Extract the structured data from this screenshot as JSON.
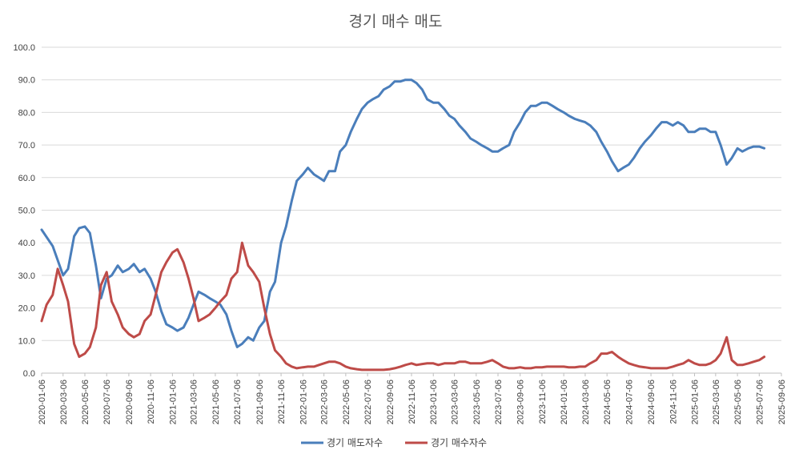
{
  "chart_data": {
    "type": "line",
    "title": "경기 매수 매도",
    "ylim": [
      0,
      100
    ],
    "y_ticks": [
      "0.0",
      "10.0",
      "20.0",
      "30.0",
      "40.0",
      "50.0",
      "60.0",
      "70.0",
      "80.0",
      "90.0",
      "100.0"
    ],
    "x_ticks": [
      "2020-01-06",
      "2020-03-06",
      "2020-05-06",
      "2020-07-06",
      "2020-09-06",
      "2020-11-06",
      "2021-01-06",
      "2021-03-06",
      "2021-05-06",
      "2021-07-06",
      "2021-09-06",
      "2021-11-06",
      "2022-01-06",
      "2022-03-06",
      "2022-05-06",
      "2022-07-06",
      "2022-09-06",
      "2022-11-06",
      "2023-01-06",
      "2023-03-06",
      "2023-05-06",
      "2023-07-06",
      "2023-09-06",
      "2023-11-06",
      "2024-01-06",
      "2024-03-06",
      "2024-05-06",
      "2024-07-06",
      "2024-09-06",
      "2024-11-06",
      "2025-01-06",
      "2025-03-06",
      "2025-05-06",
      "2025-07-06",
      "2025-09-06"
    ],
    "grid": true,
    "legend_position": "bottom",
    "series": [
      {
        "name": "경기 매도자수",
        "color": "#4a7ebb",
        "points": [
          [
            "2020-01-06",
            44
          ],
          [
            "2020-02-06",
            39
          ],
          [
            "2020-03-06",
            30
          ],
          [
            "2020-03-20",
            32
          ],
          [
            "2020-04-06",
            42
          ],
          [
            "2020-04-20",
            44.5
          ],
          [
            "2020-05-06",
            45
          ],
          [
            "2020-05-20",
            43
          ],
          [
            "2020-06-06",
            33
          ],
          [
            "2020-06-20",
            23
          ],
          [
            "2020-07-06",
            29
          ],
          [
            "2020-07-20",
            30
          ],
          [
            "2020-08-06",
            33
          ],
          [
            "2020-08-20",
            31
          ],
          [
            "2020-09-06",
            32
          ],
          [
            "2020-09-20",
            33.5
          ],
          [
            "2020-10-06",
            31
          ],
          [
            "2020-10-20",
            32
          ],
          [
            "2020-11-06",
            29
          ],
          [
            "2020-11-20",
            25
          ],
          [
            "2020-12-06",
            19
          ],
          [
            "2020-12-20",
            15
          ],
          [
            "2021-01-06",
            14
          ],
          [
            "2021-01-20",
            13
          ],
          [
            "2021-02-06",
            14
          ],
          [
            "2021-02-20",
            17
          ],
          [
            "2021-03-06",
            21
          ],
          [
            "2021-03-20",
            25
          ],
          [
            "2021-04-06",
            24
          ],
          [
            "2021-04-20",
            23
          ],
          [
            "2021-05-06",
            22
          ],
          [
            "2021-05-20",
            21
          ],
          [
            "2021-06-06",
            18
          ],
          [
            "2021-06-20",
            13
          ],
          [
            "2021-07-06",
            8
          ],
          [
            "2021-07-20",
            9
          ],
          [
            "2021-08-06",
            11
          ],
          [
            "2021-08-20",
            10
          ],
          [
            "2021-09-06",
            14
          ],
          [
            "2021-09-20",
            16
          ],
          [
            "2021-10-06",
            25
          ],
          [
            "2021-10-20",
            28
          ],
          [
            "2021-11-06",
            40
          ],
          [
            "2021-11-20",
            45
          ],
          [
            "2021-12-06",
            53
          ],
          [
            "2021-12-20",
            59
          ],
          [
            "2022-01-06",
            61
          ],
          [
            "2022-01-20",
            63
          ],
          [
            "2022-02-06",
            61
          ],
          [
            "2022-02-20",
            60
          ],
          [
            "2022-03-06",
            59
          ],
          [
            "2022-03-20",
            62
          ],
          [
            "2022-04-06",
            62
          ],
          [
            "2022-04-20",
            68
          ],
          [
            "2022-05-06",
            70
          ],
          [
            "2022-05-20",
            74
          ],
          [
            "2022-06-06",
            78
          ],
          [
            "2022-06-20",
            81
          ],
          [
            "2022-07-06",
            83
          ],
          [
            "2022-07-20",
            84
          ],
          [
            "2022-08-06",
            85
          ],
          [
            "2022-08-20",
            87
          ],
          [
            "2022-09-06",
            88
          ],
          [
            "2022-09-20",
            89.5
          ],
          [
            "2022-10-06",
            89.5
          ],
          [
            "2022-10-20",
            90
          ],
          [
            "2022-11-06",
            90
          ],
          [
            "2022-11-20",
            89
          ],
          [
            "2022-12-06",
            87
          ],
          [
            "2022-12-20",
            84
          ],
          [
            "2023-01-06",
            83
          ],
          [
            "2023-01-20",
            83
          ],
          [
            "2023-02-06",
            81
          ],
          [
            "2023-02-20",
            79
          ],
          [
            "2023-03-06",
            78
          ],
          [
            "2023-03-20",
            76
          ],
          [
            "2023-04-06",
            74
          ],
          [
            "2023-04-20",
            72
          ],
          [
            "2023-05-06",
            71
          ],
          [
            "2023-05-20",
            70
          ],
          [
            "2023-06-06",
            69
          ],
          [
            "2023-06-20",
            68
          ],
          [
            "2023-07-06",
            68
          ],
          [
            "2023-07-20",
            69
          ],
          [
            "2023-08-06",
            70
          ],
          [
            "2023-08-20",
            74
          ],
          [
            "2023-09-06",
            77
          ],
          [
            "2023-09-20",
            80
          ],
          [
            "2023-10-06",
            82
          ],
          [
            "2023-10-20",
            82
          ],
          [
            "2023-11-06",
            83
          ],
          [
            "2023-11-20",
            83
          ],
          [
            "2023-12-06",
            82
          ],
          [
            "2023-12-20",
            81
          ],
          [
            "2024-01-06",
            80
          ],
          [
            "2024-01-20",
            79
          ],
          [
            "2024-02-06",
            78
          ],
          [
            "2024-02-20",
            77.5
          ],
          [
            "2024-03-06",
            77
          ],
          [
            "2024-03-20",
            76
          ],
          [
            "2024-04-06",
            74
          ],
          [
            "2024-04-20",
            71
          ],
          [
            "2024-05-06",
            68
          ],
          [
            "2024-05-20",
            65
          ],
          [
            "2024-06-06",
            62
          ],
          [
            "2024-06-20",
            63
          ],
          [
            "2024-07-06",
            64
          ],
          [
            "2024-07-20",
            66
          ],
          [
            "2024-08-06",
            69
          ],
          [
            "2024-08-20",
            71
          ],
          [
            "2024-09-06",
            73
          ],
          [
            "2024-09-20",
            75
          ],
          [
            "2024-10-06",
            77
          ],
          [
            "2024-10-20",
            77
          ],
          [
            "2024-11-06",
            76
          ],
          [
            "2024-11-20",
            77
          ],
          [
            "2024-12-06",
            76
          ],
          [
            "2024-12-20",
            74
          ],
          [
            "2025-01-06",
            74
          ],
          [
            "2025-01-20",
            75
          ],
          [
            "2025-02-06",
            75
          ],
          [
            "2025-02-20",
            74
          ],
          [
            "2025-03-06",
            74
          ],
          [
            "2025-03-20",
            70
          ],
          [
            "2025-04-06",
            64
          ],
          [
            "2025-04-20",
            66
          ],
          [
            "2025-05-06",
            69
          ],
          [
            "2025-05-20",
            68
          ],
          [
            "2025-06-06",
            69
          ],
          [
            "2025-06-20",
            69.5
          ],
          [
            "2025-07-06",
            69.5
          ],
          [
            "2025-07-20",
            69
          ]
        ]
      },
      {
        "name": "경기 매수자수",
        "color": "#be4b48",
        "points": [
          [
            "2020-01-06",
            16
          ],
          [
            "2020-01-20",
            21
          ],
          [
            "2020-02-06",
            24
          ],
          [
            "2020-02-20",
            32
          ],
          [
            "2020-03-06",
            27
          ],
          [
            "2020-03-20",
            22
          ],
          [
            "2020-04-06",
            9
          ],
          [
            "2020-04-20",
            5
          ],
          [
            "2020-05-06",
            6
          ],
          [
            "2020-05-20",
            8
          ],
          [
            "2020-06-06",
            14
          ],
          [
            "2020-06-20",
            27
          ],
          [
            "2020-07-06",
            31
          ],
          [
            "2020-07-20",
            22
          ],
          [
            "2020-08-06",
            18
          ],
          [
            "2020-08-20",
            14
          ],
          [
            "2020-09-06",
            12
          ],
          [
            "2020-09-20",
            11
          ],
          [
            "2020-10-06",
            12
          ],
          [
            "2020-10-20",
            16
          ],
          [
            "2020-11-06",
            18
          ],
          [
            "2020-11-20",
            24
          ],
          [
            "2020-12-06",
            31
          ],
          [
            "2020-12-20",
            34
          ],
          [
            "2021-01-06",
            37
          ],
          [
            "2021-01-20",
            38
          ],
          [
            "2021-02-06",
            34
          ],
          [
            "2021-02-20",
            29
          ],
          [
            "2021-03-06",
            23
          ],
          [
            "2021-03-20",
            16
          ],
          [
            "2021-04-06",
            17
          ],
          [
            "2021-04-20",
            18
          ],
          [
            "2021-05-06",
            20
          ],
          [
            "2021-05-20",
            22
          ],
          [
            "2021-06-06",
            24
          ],
          [
            "2021-06-20",
            29
          ],
          [
            "2021-07-06",
            31
          ],
          [
            "2021-07-20",
            40
          ],
          [
            "2021-08-06",
            33
          ],
          [
            "2021-08-20",
            31
          ],
          [
            "2021-09-06",
            28
          ],
          [
            "2021-09-20",
            20
          ],
          [
            "2021-10-06",
            12
          ],
          [
            "2021-10-20",
            7
          ],
          [
            "2021-11-06",
            5
          ],
          [
            "2021-11-20",
            3
          ],
          [
            "2021-12-06",
            2
          ],
          [
            "2021-12-20",
            1.5
          ],
          [
            "2022-01-06",
            1.8
          ],
          [
            "2022-01-20",
            2
          ],
          [
            "2022-02-06",
            2
          ],
          [
            "2022-02-20",
            2.5
          ],
          [
            "2022-03-06",
            3
          ],
          [
            "2022-03-20",
            3.5
          ],
          [
            "2022-04-06",
            3.5
          ],
          [
            "2022-04-20",
            3
          ],
          [
            "2022-05-06",
            2
          ],
          [
            "2022-05-20",
            1.5
          ],
          [
            "2022-06-06",
            1.2
          ],
          [
            "2022-06-20",
            1
          ],
          [
            "2022-07-06",
            1
          ],
          [
            "2022-07-20",
            1
          ],
          [
            "2022-08-06",
            1
          ],
          [
            "2022-08-20",
            1
          ],
          [
            "2022-09-06",
            1.2
          ],
          [
            "2022-09-20",
            1.5
          ],
          [
            "2022-10-06",
            2
          ],
          [
            "2022-10-20",
            2.5
          ],
          [
            "2022-11-06",
            3
          ],
          [
            "2022-11-20",
            2.5
          ],
          [
            "2022-12-06",
            2.8
          ],
          [
            "2022-12-20",
            3
          ],
          [
            "2023-01-06",
            3
          ],
          [
            "2023-01-20",
            2.5
          ],
          [
            "2023-02-06",
            3
          ],
          [
            "2023-02-20",
            3
          ],
          [
            "2023-03-06",
            3
          ],
          [
            "2023-03-20",
            3.5
          ],
          [
            "2023-04-06",
            3.5
          ],
          [
            "2023-04-20",
            3
          ],
          [
            "2023-05-06",
            3
          ],
          [
            "2023-05-20",
            3
          ],
          [
            "2023-06-06",
            3.5
          ],
          [
            "2023-06-20",
            4
          ],
          [
            "2023-07-06",
            3
          ],
          [
            "2023-07-20",
            2
          ],
          [
            "2023-08-06",
            1.5
          ],
          [
            "2023-08-20",
            1.5
          ],
          [
            "2023-09-06",
            1.8
          ],
          [
            "2023-09-20",
            1.5
          ],
          [
            "2023-10-06",
            1.5
          ],
          [
            "2023-10-20",
            1.8
          ],
          [
            "2023-11-06",
            1.8
          ],
          [
            "2023-11-20",
            2
          ],
          [
            "2023-12-06",
            2
          ],
          [
            "2023-12-20",
            2
          ],
          [
            "2024-01-06",
            2
          ],
          [
            "2024-01-20",
            1.8
          ],
          [
            "2024-02-06",
            1.8
          ],
          [
            "2024-02-20",
            2
          ],
          [
            "2024-03-06",
            2
          ],
          [
            "2024-03-20",
            3
          ],
          [
            "2024-04-06",
            4
          ],
          [
            "2024-04-20",
            6
          ],
          [
            "2024-05-06",
            6
          ],
          [
            "2024-05-20",
            6.5
          ],
          [
            "2024-06-06",
            5
          ],
          [
            "2024-06-20",
            4
          ],
          [
            "2024-07-06",
            3
          ],
          [
            "2024-07-20",
            2.5
          ],
          [
            "2024-08-06",
            2
          ],
          [
            "2024-08-20",
            1.8
          ],
          [
            "2024-09-06",
            1.5
          ],
          [
            "2024-09-20",
            1.5
          ],
          [
            "2024-10-06",
            1.5
          ],
          [
            "2024-10-20",
            1.5
          ],
          [
            "2024-11-06",
            2
          ],
          [
            "2024-11-20",
            2.5
          ],
          [
            "2024-12-06",
            3
          ],
          [
            "2024-12-20",
            4
          ],
          [
            "2025-01-06",
            3
          ],
          [
            "2025-01-20",
            2.5
          ],
          [
            "2025-02-06",
            2.5
          ],
          [
            "2025-02-20",
            3
          ],
          [
            "2025-03-06",
            4
          ],
          [
            "2025-03-20",
            6
          ],
          [
            "2025-04-06",
            11
          ],
          [
            "2025-04-20",
            4
          ],
          [
            "2025-05-06",
            2.5
          ],
          [
            "2025-05-20",
            2.5
          ],
          [
            "2025-06-06",
            3
          ],
          [
            "2025-06-20",
            3.5
          ],
          [
            "2025-07-06",
            4
          ],
          [
            "2025-07-20",
            5
          ]
        ]
      }
    ]
  }
}
